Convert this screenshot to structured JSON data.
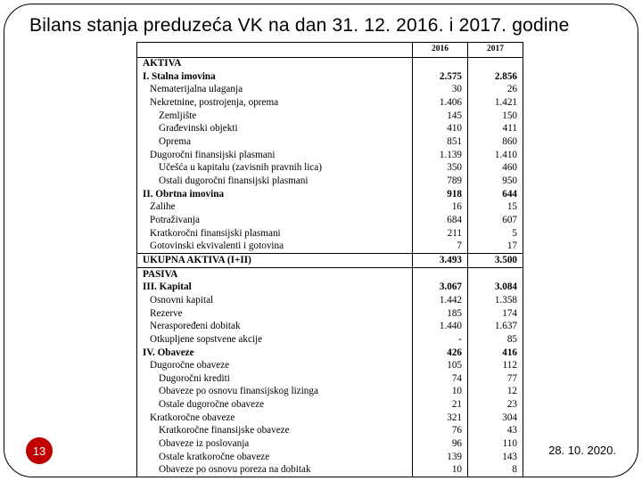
{
  "title": "Bilans stanja preduzeća VK na dan 31. 12. 2016. i 2017. godine",
  "page_num": "13",
  "date": "28. 10. 2020.",
  "cols": {
    "c2": "2016",
    "c3": "2017"
  },
  "aktiva": {
    "head": "AKTIVA",
    "r1": {
      "l": "I. Stalna imovina",
      "a": "2.575",
      "b": "2.856"
    },
    "r2": {
      "l": "Nematerijalna ulaganja",
      "a": "30",
      "b": "26"
    },
    "r3": {
      "l": "Nekretnine, postrojenja, oprema",
      "a": "1.406",
      "b": "1.421"
    },
    "r4": {
      "l": "Zemljište",
      "a": "145",
      "b": "150"
    },
    "r5": {
      "l": "Građevinski objekti",
      "a": "410",
      "b": "411"
    },
    "r6": {
      "l": "Oprema",
      "a": "851",
      "b": "860"
    },
    "r7": {
      "l": "Dugoročni finansijski plasmani",
      "a": "1.139",
      "b": "1.410"
    },
    "r8": {
      "l": "Učešća u kapitalu (zavisnih pravnih lica)",
      "a": "350",
      "b": "460"
    },
    "r9": {
      "l": "Ostali dugoročni finansijski plasmani",
      "a": "789",
      "b": "950"
    },
    "r10": {
      "l": "II. Obrtna imovina",
      "a": "918",
      "b": "644"
    },
    "r11": {
      "l": "Zalihe",
      "a": "16",
      "b": "15"
    },
    "r12": {
      "l": "Potraživanja",
      "a": "684",
      "b": "607"
    },
    "r13": {
      "l": "Kratkoročni finansijski plasmani",
      "a": "211",
      "b": "5"
    },
    "r14": {
      "l": "Gotovinski ekvivalenti i gotovina",
      "a": "7",
      "b": "17"
    },
    "tot": {
      "l": "UKUPNA AKTIVA (I+II)",
      "a": "3.493",
      "b": "3.500"
    }
  },
  "pasiva": {
    "head": "PASIVA",
    "r1": {
      "l": "III. Kapital",
      "a": "3.067",
      "b": "3.084"
    },
    "r2": {
      "l": "Osnovni kapital",
      "a": "1.442",
      "b": "1.358"
    },
    "r3": {
      "l": "Rezerve",
      "a": "185",
      "b": "174"
    },
    "r4": {
      "l": "Neraspoređeni dobitak",
      "a": "1.440",
      "b": "1.637"
    },
    "r5": {
      "l": "Otkupljene sopstvene akcije",
      "a": "-",
      "b": "85"
    },
    "r6": {
      "l": "IV. Obaveze",
      "a": "426",
      "b": "416"
    },
    "r7": {
      "l": "Dugoročne obaveze",
      "a": "105",
      "b": "112"
    },
    "r8": {
      "l": "Dugoročni krediti",
      "a": "74",
      "b": "77"
    },
    "r9": {
      "l": "Obaveze po osnovu finansijskog lizinga",
      "a": "10",
      "b": "12"
    },
    "r10": {
      "l": "Ostale dugoročne obaveze",
      "a": "21",
      "b": "23"
    },
    "r11": {
      "l": "Kratkoročne obaveze",
      "a": "321",
      "b": "304"
    },
    "r12": {
      "l": "Kratkoročne finansijske obaveze",
      "a": "76",
      "b": "43"
    },
    "r13": {
      "l": "Obaveze iz poslovanja",
      "a": "96",
      "b": "110"
    },
    "r14": {
      "l": "Ostale kratkoročne obaveze",
      "a": "139",
      "b": "143"
    },
    "r15": {
      "l": "Obaveze po osnovu poreza na dobitak",
      "a": "10",
      "b": "8"
    }
  }
}
